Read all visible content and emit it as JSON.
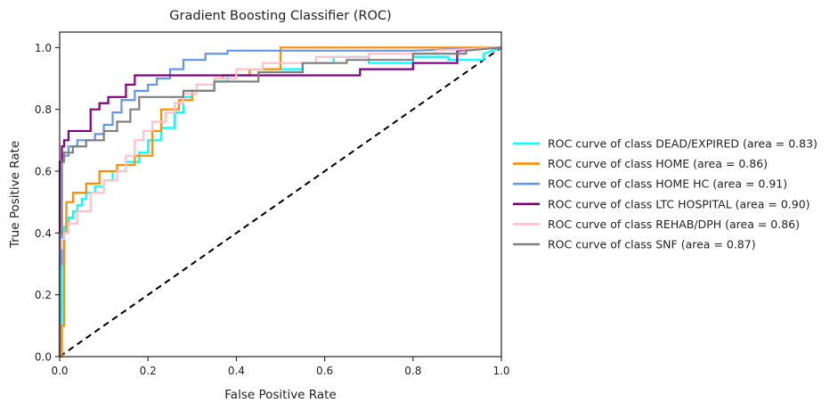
{
  "chart_data": {
    "type": "line",
    "title": "Gradient Boosting Classifier (ROC)",
    "xlabel": "False Positive Rate",
    "ylabel": "True Positive Rate",
    "xlim": [
      0.0,
      1.0
    ],
    "ylim": [
      0.0,
      1.05
    ],
    "xticks": [
      "0.0",
      "0.2",
      "0.4",
      "0.6",
      "0.8",
      "1.0"
    ],
    "yticks": [
      "0.0",
      "0.2",
      "0.4",
      "0.6",
      "0.8",
      "1.0"
    ],
    "xtick_values": [
      0.0,
      0.2,
      0.4,
      0.6,
      0.8,
      1.0
    ],
    "ytick_values": [
      0.0,
      0.2,
      0.4,
      0.6,
      0.8,
      1.0
    ],
    "grid": false,
    "legend_position": "center-left outside plot (right)",
    "baseline": {
      "x": [
        0.0,
        1.0
      ],
      "y": [
        0.0,
        1.0
      ],
      "color": "#000000",
      "style": "dashed"
    },
    "series": [
      {
        "name": "ROC curve of class DEAD/EXPIRED (area = 0.83)",
        "color": "#00ffff",
        "x": [
          0.0,
          0.0,
          0.005,
          0.005,
          0.01,
          0.01,
          0.015,
          0.015,
          0.02,
          0.02,
          0.03,
          0.03,
          0.04,
          0.04,
          0.05,
          0.05,
          0.06,
          0.06,
          0.08,
          0.08,
          0.1,
          0.1,
          0.12,
          0.12,
          0.15,
          0.15,
          0.18,
          0.18,
          0.2,
          0.2,
          0.23,
          0.23,
          0.26,
          0.26,
          0.28,
          0.28,
          0.3,
          0.3,
          0.35,
          0.35,
          0.38,
          0.38,
          0.43,
          0.43,
          0.55,
          0.55,
          0.62,
          0.62,
          0.66,
          0.66,
          0.7,
          0.7,
          0.8,
          0.8,
          0.88,
          0.88,
          0.96,
          0.96,
          1.0
        ],
        "y": [
          0.0,
          0.05,
          0.05,
          0.4,
          0.4,
          0.42,
          0.42,
          0.43,
          0.43,
          0.45,
          0.45,
          0.47,
          0.47,
          0.49,
          0.49,
          0.51,
          0.51,
          0.53,
          0.53,
          0.55,
          0.55,
          0.57,
          0.57,
          0.6,
          0.6,
          0.63,
          0.63,
          0.66,
          0.66,
          0.7,
          0.7,
          0.74,
          0.74,
          0.79,
          0.79,
          0.84,
          0.84,
          0.86,
          0.86,
          0.89,
          0.89,
          0.91,
          0.91,
          0.93,
          0.93,
          0.95,
          0.95,
          0.97,
          0.97,
          0.97,
          0.97,
          0.95,
          0.95,
          0.97,
          0.97,
          0.96,
          0.96,
          0.98,
          1.0
        ]
      },
      {
        "name": "ROC curve of class HOME (area = 0.86)",
        "color": "#ff8c00",
        "x": [
          0.0,
          0.005,
          0.005,
          0.01,
          0.01,
          0.015,
          0.015,
          0.03,
          0.03,
          0.06,
          0.06,
          0.09,
          0.09,
          0.13,
          0.13,
          0.17,
          0.17,
          0.21,
          0.21,
          0.23,
          0.23,
          0.27,
          0.27,
          0.3,
          0.3,
          0.35,
          0.35,
          0.37,
          0.37,
          0.43,
          0.43,
          0.5,
          0.5,
          0.98,
          1.0
        ],
        "y": [
          0.0,
          0.0,
          0.1,
          0.1,
          0.4,
          0.4,
          0.5,
          0.5,
          0.53,
          0.53,
          0.56,
          0.56,
          0.6,
          0.6,
          0.62,
          0.62,
          0.65,
          0.65,
          0.73,
          0.73,
          0.8,
          0.8,
          0.83,
          0.83,
          0.86,
          0.86,
          0.9,
          0.9,
          0.91,
          0.91,
          0.93,
          0.93,
          1.0,
          1.0,
          1.0
        ]
      },
      {
        "name": "ROC curve of class HOME HC (area = 0.91)",
        "color": "#6495ed",
        "x": [
          0.0,
          0.0,
          0.005,
          0.005,
          0.02,
          0.02,
          0.04,
          0.04,
          0.08,
          0.08,
          0.1,
          0.1,
          0.12,
          0.12,
          0.14,
          0.14,
          0.17,
          0.17,
          0.2,
          0.2,
          0.22,
          0.22,
          0.25,
          0.25,
          0.28,
          0.28,
          0.33,
          0.33,
          0.38,
          0.38,
          0.68,
          0.68,
          0.8,
          0.8,
          1.0
        ],
        "y": [
          0.0,
          0.3,
          0.3,
          0.65,
          0.65,
          0.68,
          0.68,
          0.7,
          0.7,
          0.72,
          0.72,
          0.75,
          0.75,
          0.79,
          0.79,
          0.83,
          0.83,
          0.86,
          0.86,
          0.88,
          0.88,
          0.9,
          0.9,
          0.93,
          0.93,
          0.96,
          0.96,
          0.98,
          0.98,
          0.99,
          0.99,
          0.99,
          0.99,
          0.99,
          1.0
        ]
      },
      {
        "name": "ROC curve of class LTC HOSPITAL (area = 0.90)",
        "color": "#800080",
        "x": [
          0.0,
          0.0,
          0.005,
          0.005,
          0.01,
          0.01,
          0.02,
          0.02,
          0.07,
          0.07,
          0.09,
          0.09,
          0.11,
          0.11,
          0.15,
          0.15,
          0.17,
          0.17,
          0.68,
          0.68,
          0.8,
          0.8,
          0.9,
          0.9,
          1.0
        ],
        "y": [
          0.0,
          0.63,
          0.63,
          0.68,
          0.68,
          0.7,
          0.7,
          0.73,
          0.73,
          0.8,
          0.8,
          0.82,
          0.82,
          0.84,
          0.84,
          0.88,
          0.88,
          0.91,
          0.91,
          0.93,
          0.93,
          0.95,
          0.95,
          0.99,
          1.0
        ]
      },
      {
        "name": "ROC curve of class REHAB/DPH (area = 0.86)",
        "color": "#ffc0cb",
        "x": [
          0.0,
          0.0,
          0.005,
          0.005,
          0.01,
          0.01,
          0.02,
          0.02,
          0.04,
          0.04,
          0.07,
          0.07,
          0.1,
          0.1,
          0.13,
          0.13,
          0.15,
          0.15,
          0.17,
          0.17,
          0.19,
          0.19,
          0.21,
          0.21,
          0.24,
          0.24,
          0.26,
          0.26,
          0.28,
          0.28,
          0.31,
          0.31,
          0.35,
          0.35,
          0.4,
          0.4,
          0.46,
          0.46,
          0.58,
          0.58,
          0.7,
          0.7,
          0.85,
          0.85,
          1.0
        ],
        "y": [
          0.0,
          0.35,
          0.35,
          0.38,
          0.38,
          0.4,
          0.4,
          0.43,
          0.43,
          0.47,
          0.47,
          0.53,
          0.53,
          0.57,
          0.57,
          0.6,
          0.6,
          0.65,
          0.65,
          0.7,
          0.7,
          0.73,
          0.73,
          0.76,
          0.76,
          0.79,
          0.79,
          0.82,
          0.82,
          0.85,
          0.85,
          0.88,
          0.88,
          0.9,
          0.9,
          0.93,
          0.93,
          0.95,
          0.95,
          0.97,
          0.97,
          0.98,
          0.98,
          0.99,
          1.0
        ]
      },
      {
        "name": "ROC curve of class SNF (area = 0.87)",
        "color": "#808080",
        "x": [
          0.0,
          0.0,
          0.005,
          0.005,
          0.01,
          0.01,
          0.03,
          0.03,
          0.06,
          0.06,
          0.1,
          0.1,
          0.13,
          0.13,
          0.16,
          0.16,
          0.18,
          0.18,
          0.22,
          0.22,
          0.28,
          0.28,
          0.35,
          0.35,
          0.45,
          0.45,
          0.55,
          0.55,
          0.65,
          0.65,
          0.8,
          0.8,
          0.92,
          0.92,
          1.0
        ],
        "y": [
          0.0,
          0.4,
          0.4,
          0.63,
          0.63,
          0.66,
          0.66,
          0.68,
          0.68,
          0.7,
          0.7,
          0.73,
          0.73,
          0.76,
          0.76,
          0.8,
          0.8,
          0.84,
          0.84,
          0.84,
          0.84,
          0.86,
          0.86,
          0.89,
          0.89,
          0.92,
          0.92,
          0.95,
          0.95,
          0.96,
          0.96,
          0.98,
          0.98,
          0.99,
          1.0
        ]
      }
    ]
  }
}
